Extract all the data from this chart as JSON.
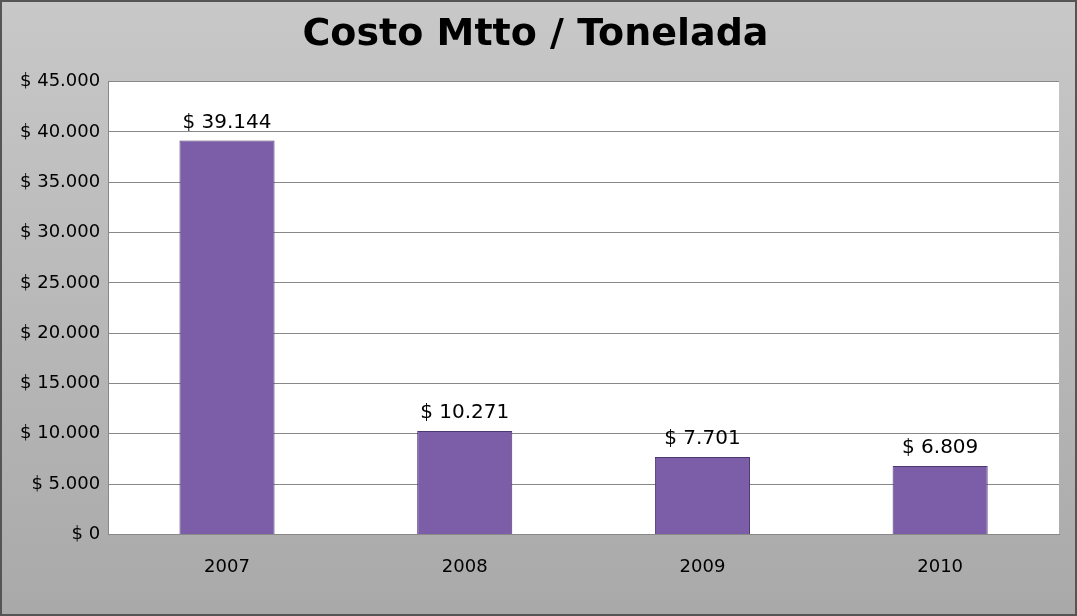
{
  "chart_data": {
    "type": "bar",
    "title": "Costo Mtto / Tonelada",
    "categories": [
      "2007",
      "2008",
      "2009",
      "2010"
    ],
    "values": [
      39144,
      10271,
      7701,
      6809
    ],
    "value_labels": [
      "$ 39.144",
      "$ 10.271",
      "$ 7.701",
      "$ 6.809"
    ],
    "color": "#7b5ea7",
    "ylim": [
      0,
      45000
    ],
    "yticks": [
      {
        "value": 0,
        "label": "$ 0"
      },
      {
        "value": 5000,
        "label": "$ 5.000"
      },
      {
        "value": 10000,
        "label": "$ 10.000"
      },
      {
        "value": 15000,
        "label": "$ 15.000"
      },
      {
        "value": 20000,
        "label": "$ 20.000"
      },
      {
        "value": 25000,
        "label": "$ 25.000"
      },
      {
        "value": 30000,
        "label": "$ 30.000"
      },
      {
        "value": 35000,
        "label": "$ 35.000"
      },
      {
        "value": 40000,
        "label": "$ 40.000"
      },
      {
        "value": 45000,
        "label": "$ 45.000"
      }
    ],
    "grid": "y",
    "legend": false
  }
}
